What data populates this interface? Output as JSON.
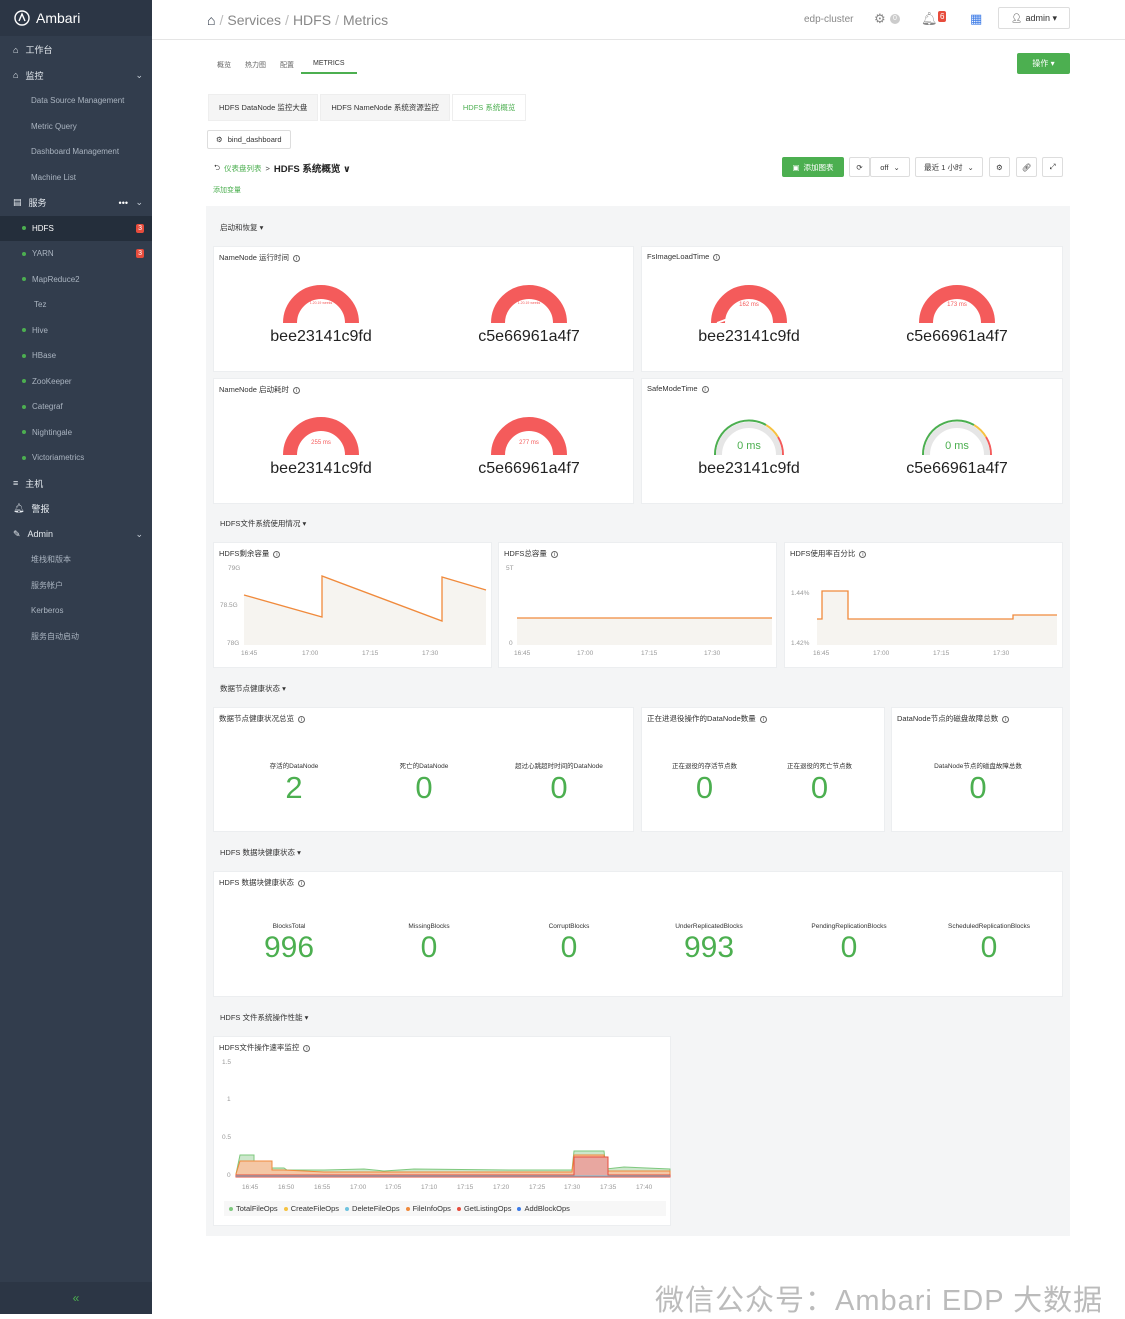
{
  "app": {
    "name": "Ambari"
  },
  "sidebar": {
    "main": [
      {
        "label": "工作台",
        "icon": "home-icon"
      },
      {
        "label": "监控",
        "icon": "home-icon"
      }
    ],
    "monitor_items": [
      "Data Source Management",
      "Metric Query",
      "Dashboard Management",
      "Machine List"
    ],
    "services_label": "服务",
    "services": [
      {
        "label": "HDFS",
        "badge": "3",
        "active": true
      },
      {
        "label": "YARN",
        "badge": "3"
      },
      {
        "label": "MapReduce2"
      },
      {
        "label": "Tez",
        "nodot": true
      },
      {
        "label": "Hive"
      },
      {
        "label": "HBase"
      },
      {
        "label": "ZooKeeper"
      },
      {
        "label": "Categraf"
      },
      {
        "label": "Nightingale"
      },
      {
        "label": "Victoriametrics"
      }
    ],
    "hosts_label": "主机",
    "alerts_label": "警报",
    "admin_label": "Admin",
    "admin_items": [
      "堆栈和版本",
      "服务帐户",
      "Kerberos",
      "服务自动启动"
    ],
    "collapse": "«"
  },
  "topbar": {
    "breadcrumb": [
      "Services",
      "HDFS",
      "Metrics"
    ],
    "cluster": "edp-cluster",
    "ops_count": "0",
    "alerts_count": "6",
    "user": "admin ▾"
  },
  "tabs": [
    "概览",
    "热力图",
    "配置",
    "METRICS"
  ],
  "actions_label": "操作 ▾",
  "subtabs": [
    "HDFS DataNode 监控大盘",
    "HDFS NameNode 系统资源监控",
    "HDFS 系统概览"
  ],
  "bind_label": "bind_dashboard",
  "dash": {
    "link": "仪表盘列表",
    "sep": ">",
    "title": "HDFS 系统概览 ∨",
    "addvar": "添加变量"
  },
  "toolbar": {
    "add": "添加图表",
    "refresh": "off",
    "range": "最近 1 小时"
  },
  "sections": [
    "启动和恢复",
    "HDFS文件系统使用情况",
    "数据节点健康状态",
    "HDFS 数据块健康状态",
    "HDFS 文件系统操作性能"
  ],
  "gauges": {
    "nn_uptime": {
      "title": "NameNode 运行时间",
      "items": [
        {
          "name": "bee23141c9fd",
          "value": "1.20.19 weeks"
        },
        {
          "name": "c5e66961a4f7",
          "value": "1.20.19 weeks"
        }
      ]
    },
    "fsimage": {
      "title": "FsImageLoadTime",
      "items": [
        {
          "name": "bee23141c9fd",
          "value": "162 ms"
        },
        {
          "name": "c5e66961a4f7",
          "value": "173 ms"
        }
      ]
    },
    "nn_start": {
      "title": "NameNode 启动耗时",
      "items": [
        {
          "name": "bee23141c9fd",
          "value": "255 ms"
        },
        {
          "name": "c5e66961a4f7",
          "value": "277 ms"
        }
      ]
    },
    "safemode": {
      "title": "SafeModeTime",
      "items": [
        {
          "name": "bee23141c9fd",
          "value": "0 ms"
        },
        {
          "name": "c5e66961a4f7",
          "value": "0 ms"
        }
      ]
    }
  },
  "usage_panels": [
    {
      "title": "HDFS剩余容量",
      "ylabels": [
        "79G",
        "78.5G",
        "78G"
      ],
      "xlabels": [
        "16:45",
        "17:00",
        "17:15",
        "17:30"
      ]
    },
    {
      "title": "HDFS总容量",
      "ylabels": [
        "5T",
        "0"
      ],
      "xlabels": [
        "16:45",
        "17:00",
        "17:15",
        "17:30"
      ]
    },
    {
      "title": "HDFS使用率百分比",
      "ylabels": [
        "1.44%",
        "1.42%"
      ],
      "xlabels": [
        "16:45",
        "17:00",
        "17:15",
        "17:30"
      ]
    }
  ],
  "dn_health": {
    "title1": "数据节点健康状况总览",
    "title2": "正在进退役操作的DataNode数量",
    "title3": "DataNode节点的磁盘故障总数",
    "stats": [
      {
        "label": "存活的DataNode",
        "value": "2"
      },
      {
        "label": "死亡的DataNode",
        "value": "0"
      },
      {
        "label": "超过心跳超时时间的DataNode",
        "value": "0"
      },
      {
        "label": "正在退役的存活节点数",
        "value": "0"
      },
      {
        "label": "正在退役的死亡节点数",
        "value": "0"
      },
      {
        "label": "DataNode节点的磁盘故障总数",
        "value": "0"
      }
    ]
  },
  "blocks": {
    "title": "HDFS 数据块健康状态",
    "stats": [
      {
        "label": "BlocksTotal",
        "value": "996"
      },
      {
        "label": "MissingBlocks",
        "value": "0"
      },
      {
        "label": "CorruptBlocks",
        "value": "0"
      },
      {
        "label": "UnderReplicatedBlocks",
        "value": "993"
      },
      {
        "label": "PendingReplicationBlocks",
        "value": "0"
      },
      {
        "label": "ScheduledReplicationBlocks",
        "value": "0"
      }
    ]
  },
  "ops": {
    "title": "HDFS文件操作速率监控",
    "ylabels": [
      "1.5",
      "1",
      "0.5",
      "0"
    ],
    "xlabels": [
      "16:45",
      "16:50",
      "16:55",
      "17:00",
      "17:05",
      "17:10",
      "17:15",
      "17:20",
      "17:25",
      "17:30",
      "17:35",
      "17:40"
    ],
    "legend": [
      {
        "name": "TotalFileOps",
        "color": "#7ec87e"
      },
      {
        "name": "CreateFileOps",
        "color": "#f5c242"
      },
      {
        "name": "DeleteFileOps",
        "color": "#6fc3df"
      },
      {
        "name": "FileInfoOps",
        "color": "#f08a3c"
      },
      {
        "name": "GetListingOps",
        "color": "#e74c3c"
      },
      {
        "name": "AddBlockOps",
        "color": "#3c7be7"
      }
    ]
  },
  "watermark": "微信公众号：Ambari EDP 大数据"
}
